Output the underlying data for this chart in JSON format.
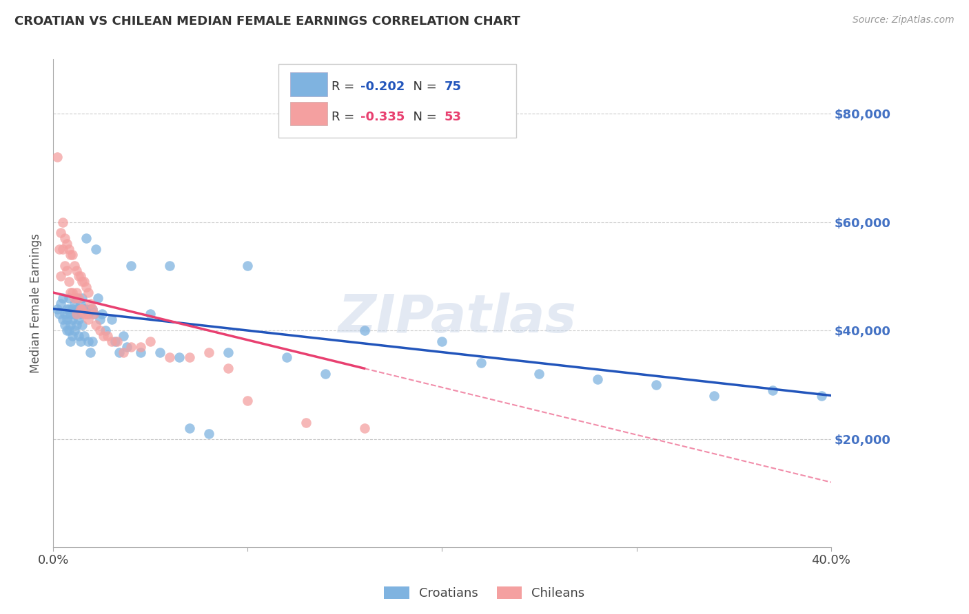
{
  "title": "CROATIAN VS CHILEAN MEDIAN FEMALE EARNINGS CORRELATION CHART",
  "source": "Source: ZipAtlas.com",
  "ylabel": "Median Female Earnings",
  "watermark": "ZIPatlas",
  "croatian_R": -0.202,
  "croatian_N": 75,
  "chilean_R": -0.335,
  "chilean_N": 53,
  "ytick_labels": [
    "$20,000",
    "$40,000",
    "$60,000",
    "$80,000"
  ],
  "ytick_values": [
    20000,
    40000,
    60000,
    80000
  ],
  "ylim": [
    0,
    90000
  ],
  "xlim": [
    0.0,
    0.4
  ],
  "blue_scatter_color": "#7FB3E0",
  "pink_scatter_color": "#F4A0A0",
  "blue_line_color": "#2255BB",
  "pink_line_color": "#E84070",
  "right_axis_color": "#4472C4",
  "croatian_x": [
    0.002,
    0.003,
    0.004,
    0.005,
    0.005,
    0.006,
    0.006,
    0.007,
    0.007,
    0.007,
    0.008,
    0.008,
    0.008,
    0.009,
    0.009,
    0.009,
    0.01,
    0.01,
    0.01,
    0.011,
    0.011,
    0.011,
    0.012,
    0.012,
    0.012,
    0.013,
    0.013,
    0.013,
    0.014,
    0.014,
    0.014,
    0.015,
    0.015,
    0.016,
    0.016,
    0.017,
    0.017,
    0.018,
    0.018,
    0.019,
    0.019,
    0.02,
    0.02,
    0.021,
    0.022,
    0.023,
    0.024,
    0.025,
    0.027,
    0.03,
    0.032,
    0.034,
    0.036,
    0.038,
    0.04,
    0.045,
    0.05,
    0.055,
    0.06,
    0.065,
    0.07,
    0.08,
    0.09,
    0.1,
    0.12,
    0.14,
    0.16,
    0.2,
    0.22,
    0.25,
    0.28,
    0.31,
    0.34,
    0.37,
    0.395
  ],
  "croatian_y": [
    44000,
    43000,
    45000,
    46000,
    42000,
    43000,
    41000,
    44000,
    42000,
    40000,
    46000,
    44000,
    40000,
    43000,
    41000,
    38000,
    44000,
    42000,
    39000,
    45000,
    43000,
    40000,
    46000,
    44000,
    41000,
    44000,
    42000,
    39000,
    45000,
    43000,
    38000,
    46000,
    41000,
    44000,
    39000,
    57000,
    44000,
    43000,
    38000,
    44000,
    36000,
    44000,
    38000,
    43000,
    55000,
    46000,
    42000,
    43000,
    40000,
    42000,
    38000,
    36000,
    39000,
    37000,
    52000,
    36000,
    43000,
    36000,
    52000,
    35000,
    22000,
    21000,
    36000,
    52000,
    35000,
    32000,
    40000,
    38000,
    34000,
    32000,
    31000,
    30000,
    28000,
    29000,
    28000
  ],
  "chilean_x": [
    0.002,
    0.003,
    0.004,
    0.004,
    0.005,
    0.005,
    0.006,
    0.006,
    0.007,
    0.007,
    0.008,
    0.008,
    0.009,
    0.009,
    0.01,
    0.01,
    0.011,
    0.011,
    0.012,
    0.012,
    0.012,
    0.013,
    0.013,
    0.014,
    0.014,
    0.015,
    0.015,
    0.016,
    0.016,
    0.017,
    0.017,
    0.018,
    0.018,
    0.019,
    0.02,
    0.021,
    0.022,
    0.024,
    0.026,
    0.028,
    0.03,
    0.033,
    0.036,
    0.04,
    0.045,
    0.05,
    0.06,
    0.07,
    0.08,
    0.09,
    0.1,
    0.13,
    0.16
  ],
  "chilean_y": [
    72000,
    55000,
    58000,
    50000,
    60000,
    55000,
    57000,
    52000,
    56000,
    51000,
    55000,
    49000,
    54000,
    47000,
    54000,
    47000,
    52000,
    46000,
    51000,
    47000,
    43000,
    50000,
    46000,
    50000,
    44000,
    49000,
    44000,
    49000,
    43000,
    48000,
    43000,
    47000,
    42000,
    45000,
    44000,
    43000,
    41000,
    40000,
    39000,
    39000,
    38000,
    38000,
    36000,
    37000,
    37000,
    38000,
    35000,
    35000,
    36000,
    33000,
    27000,
    23000,
    22000
  ]
}
